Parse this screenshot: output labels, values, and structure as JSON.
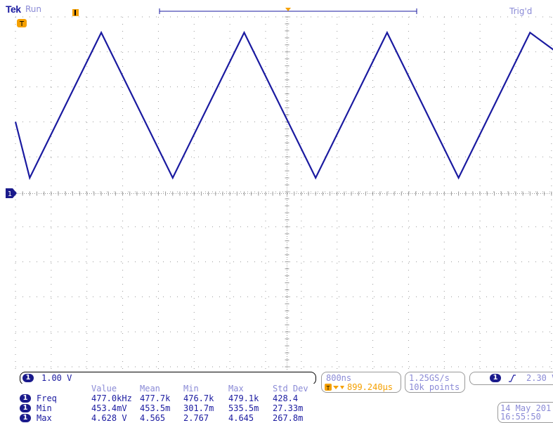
{
  "header": {
    "brand": "Tek",
    "state": "Run",
    "trigger_status": "Trig'd"
  },
  "channel": {
    "badge": "1",
    "scale": "1.00 V"
  },
  "timebase": {
    "time_per_div": "800ns",
    "trigger_position": "899.240µs",
    "sample_rate": "1.25GS/s",
    "record_length": "10k points"
  },
  "trigger": {
    "source": "1",
    "level": "2.30 V"
  },
  "datetime": {
    "date": "14 May 201",
    "time": "16:55:50"
  },
  "measurements": {
    "columns": [
      "Value",
      "Mean",
      "Min",
      "Max",
      "Std Dev"
    ],
    "rows": [
      {
        "name": "Freq",
        "value": "477.0kHz",
        "mean": "477.7k",
        "min": "476.7k",
        "max": "479.1k",
        "std": "428.4"
      },
      {
        "name": "Min",
        "value": "453.4mV",
        "mean": "453.5m",
        "min": "301.7m",
        "max": "535.5m",
        "std": "27.33m"
      },
      {
        "name": "Max",
        "value": "4.628 V",
        "mean": "4.565",
        "min": "2.767",
        "max": "4.645",
        "std": "267.8m"
      }
    ]
  },
  "colors": {
    "trace": "#1a1aa0",
    "grid": "#9a9a9a",
    "trigger_marker": "#f5a000",
    "label": "#8a8ad6"
  },
  "chart_data": {
    "type": "line",
    "series": [
      {
        "x": [
          0,
          0.4,
          2.4,
          4.4,
          6.4,
          8.4,
          10.4,
          12.4,
          14.4,
          15.2
        ],
        "y": [
          2.05,
          0.45,
          4.6,
          0.45,
          4.6,
          0.45,
          4.6,
          0.45,
          4.6,
          4.0
        ]
      }
    ],
    "xlim": [
      0,
      15.2
    ],
    "ylim": [
      -5.05,
      5.05
    ],
    "ground_level_v": 0,
    "grid": true
  }
}
